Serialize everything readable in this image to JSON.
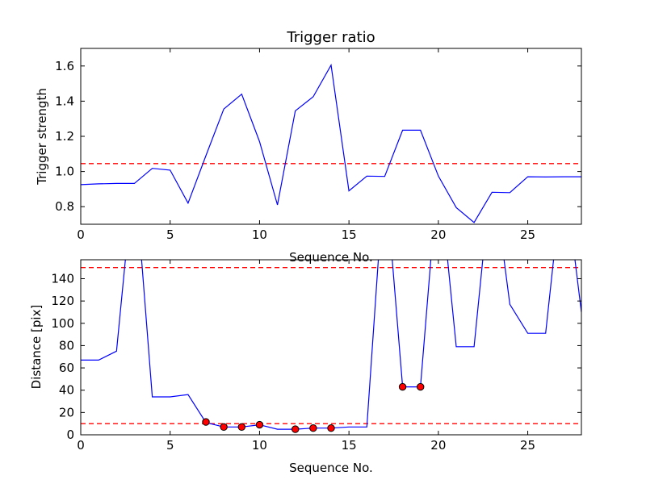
{
  "chart_data": [
    {
      "type": "line",
      "title": "Trigger ratio",
      "xlabel": "Sequence No.",
      "ylabel": "Trigger strength",
      "xlim": [
        0,
        28
      ],
      "ylim": [
        0.7,
        1.7
      ],
      "xticks": [
        0,
        5,
        10,
        15,
        20,
        25
      ],
      "yticks": [
        0.8,
        1.0,
        1.2,
        1.4,
        1.6
      ],
      "ytick_labels": [
        "0.8",
        "1.0",
        "1.2",
        "1.4",
        "1.6"
      ],
      "grid": false,
      "series": [
        {
          "color": "#0000ff",
          "x": [
            0,
            1,
            2,
            3,
            4,
            5,
            6,
            7,
            8,
            9,
            10,
            11,
            12,
            13,
            14,
            15,
            16,
            17,
            18,
            19,
            20,
            21,
            22,
            23,
            24,
            25,
            26,
            27,
            28
          ],
          "y": [
            0.925,
            0.93,
            0.932,
            0.932,
            1.018,
            1.008,
            0.82,
            1.09,
            1.355,
            1.44,
            1.17,
            0.81,
            1.345,
            1.425,
            1.605,
            0.89,
            0.974,
            0.972,
            1.235,
            1.235,
            0.974,
            0.795,
            0.71,
            0.882,
            0.88,
            0.97,
            0.969,
            0.97,
            0.97
          ]
        }
      ],
      "hlines": [
        {
          "y": 1.045,
          "color": "#ff0000",
          "style": "dashed"
        }
      ]
    },
    {
      "type": "line",
      "title": "",
      "xlabel": "Sequence No.",
      "ylabel": "Distance [pix]",
      "xlim": [
        0,
        28
      ],
      "ylim": [
        0,
        157
      ],
      "xticks": [
        0,
        5,
        10,
        15,
        20,
        25
      ],
      "yticks": [
        0,
        20,
        40,
        60,
        80,
        100,
        120,
        140
      ],
      "grid": false,
      "series": [
        {
          "color": "#0000ff",
          "x": [
            0,
            1,
            2,
            3,
            4,
            5,
            6,
            7,
            8,
            9,
            10,
            11,
            12,
            13,
            14,
            15,
            16,
            17,
            18,
            19,
            20,
            21,
            22,
            23,
            24,
            25,
            26,
            27,
            28
          ],
          "y": [
            67,
            67,
            75,
            240,
            34,
            34,
            36,
            11,
            7,
            7,
            9,
            5,
            5,
            6,
            6,
            7,
            7,
            240,
            43,
            43,
            240,
            79,
            79,
            240,
            117,
            91,
            91,
            240,
            110
          ]
        }
      ],
      "markers": {
        "color": "#ff0000",
        "x": [
          7,
          8,
          9,
          10,
          12,
          13,
          14,
          18,
          19
        ],
        "y": [
          11.5,
          7,
          7,
          9,
          5,
          6,
          6,
          43,
          43
        ]
      },
      "hlines": [
        {
          "y": 150,
          "color": "#ff0000",
          "style": "dashed"
        },
        {
          "y": 10,
          "color": "#ff0000",
          "style": "dashed"
        }
      ]
    }
  ]
}
